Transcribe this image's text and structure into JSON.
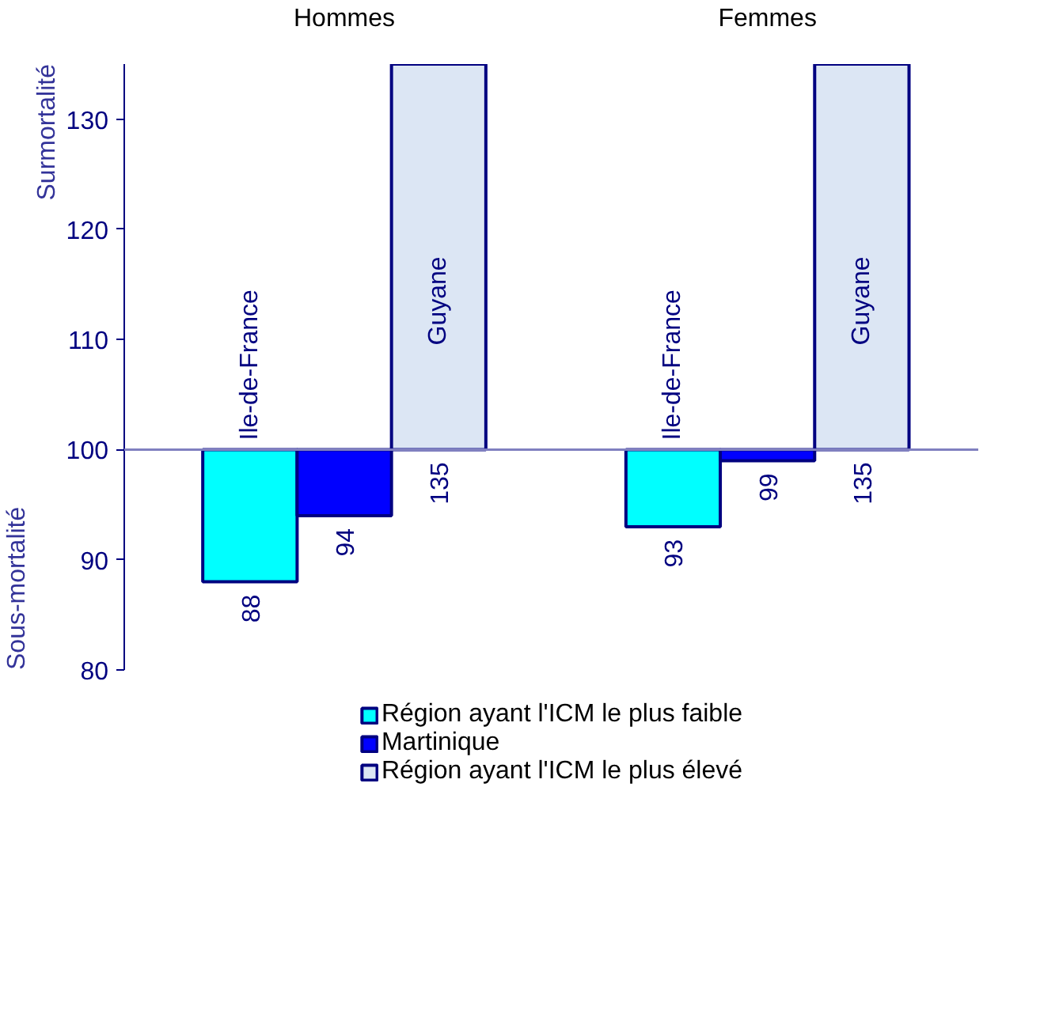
{
  "chart_data": {
    "type": "bar",
    "categories": [
      "Hommes",
      "Femmes"
    ],
    "ylabel": "Surmortalité",
    "annotations": [
      "Sous-mortalité",
      "Ile-de-France",
      "Guyane",
      "Ile-de-France",
      "Guyane"
    ],
    "series": [
      {
        "name": "Région ayant l'ICM le plus faible",
        "color": "#00ffff",
        "base": [
          100,
          100
        ],
        "values": [
          -12,
          -7
        ],
        "value_labels": [
          "88",
          "93"
        ]
      },
      {
        "name": "Martinique",
        "color": "#0000ff",
        "base": [
          100,
          100
        ],
        "values": [
          -6,
          -1
        ],
        "value_labels": [
          "94",
          "99"
        ]
      },
      {
        "name": "Région ayant l'ICM le plus élevé",
        "color": "#dce6f4",
        "base": [
          100,
          100
        ],
        "values": [
          35,
          35
        ],
        "value_labels": [
          "135",
          "135"
        ]
      }
    ],
    "ylim": [
      80,
      135
    ],
    "yticks": [
      80,
      90,
      100,
      110,
      120,
      130
    ],
    "ref_lines": [
      {
        "axis": "y",
        "value": 100,
        "color": "#8080c0"
      }
    ],
    "grid": false,
    "legend": "bottom"
  }
}
